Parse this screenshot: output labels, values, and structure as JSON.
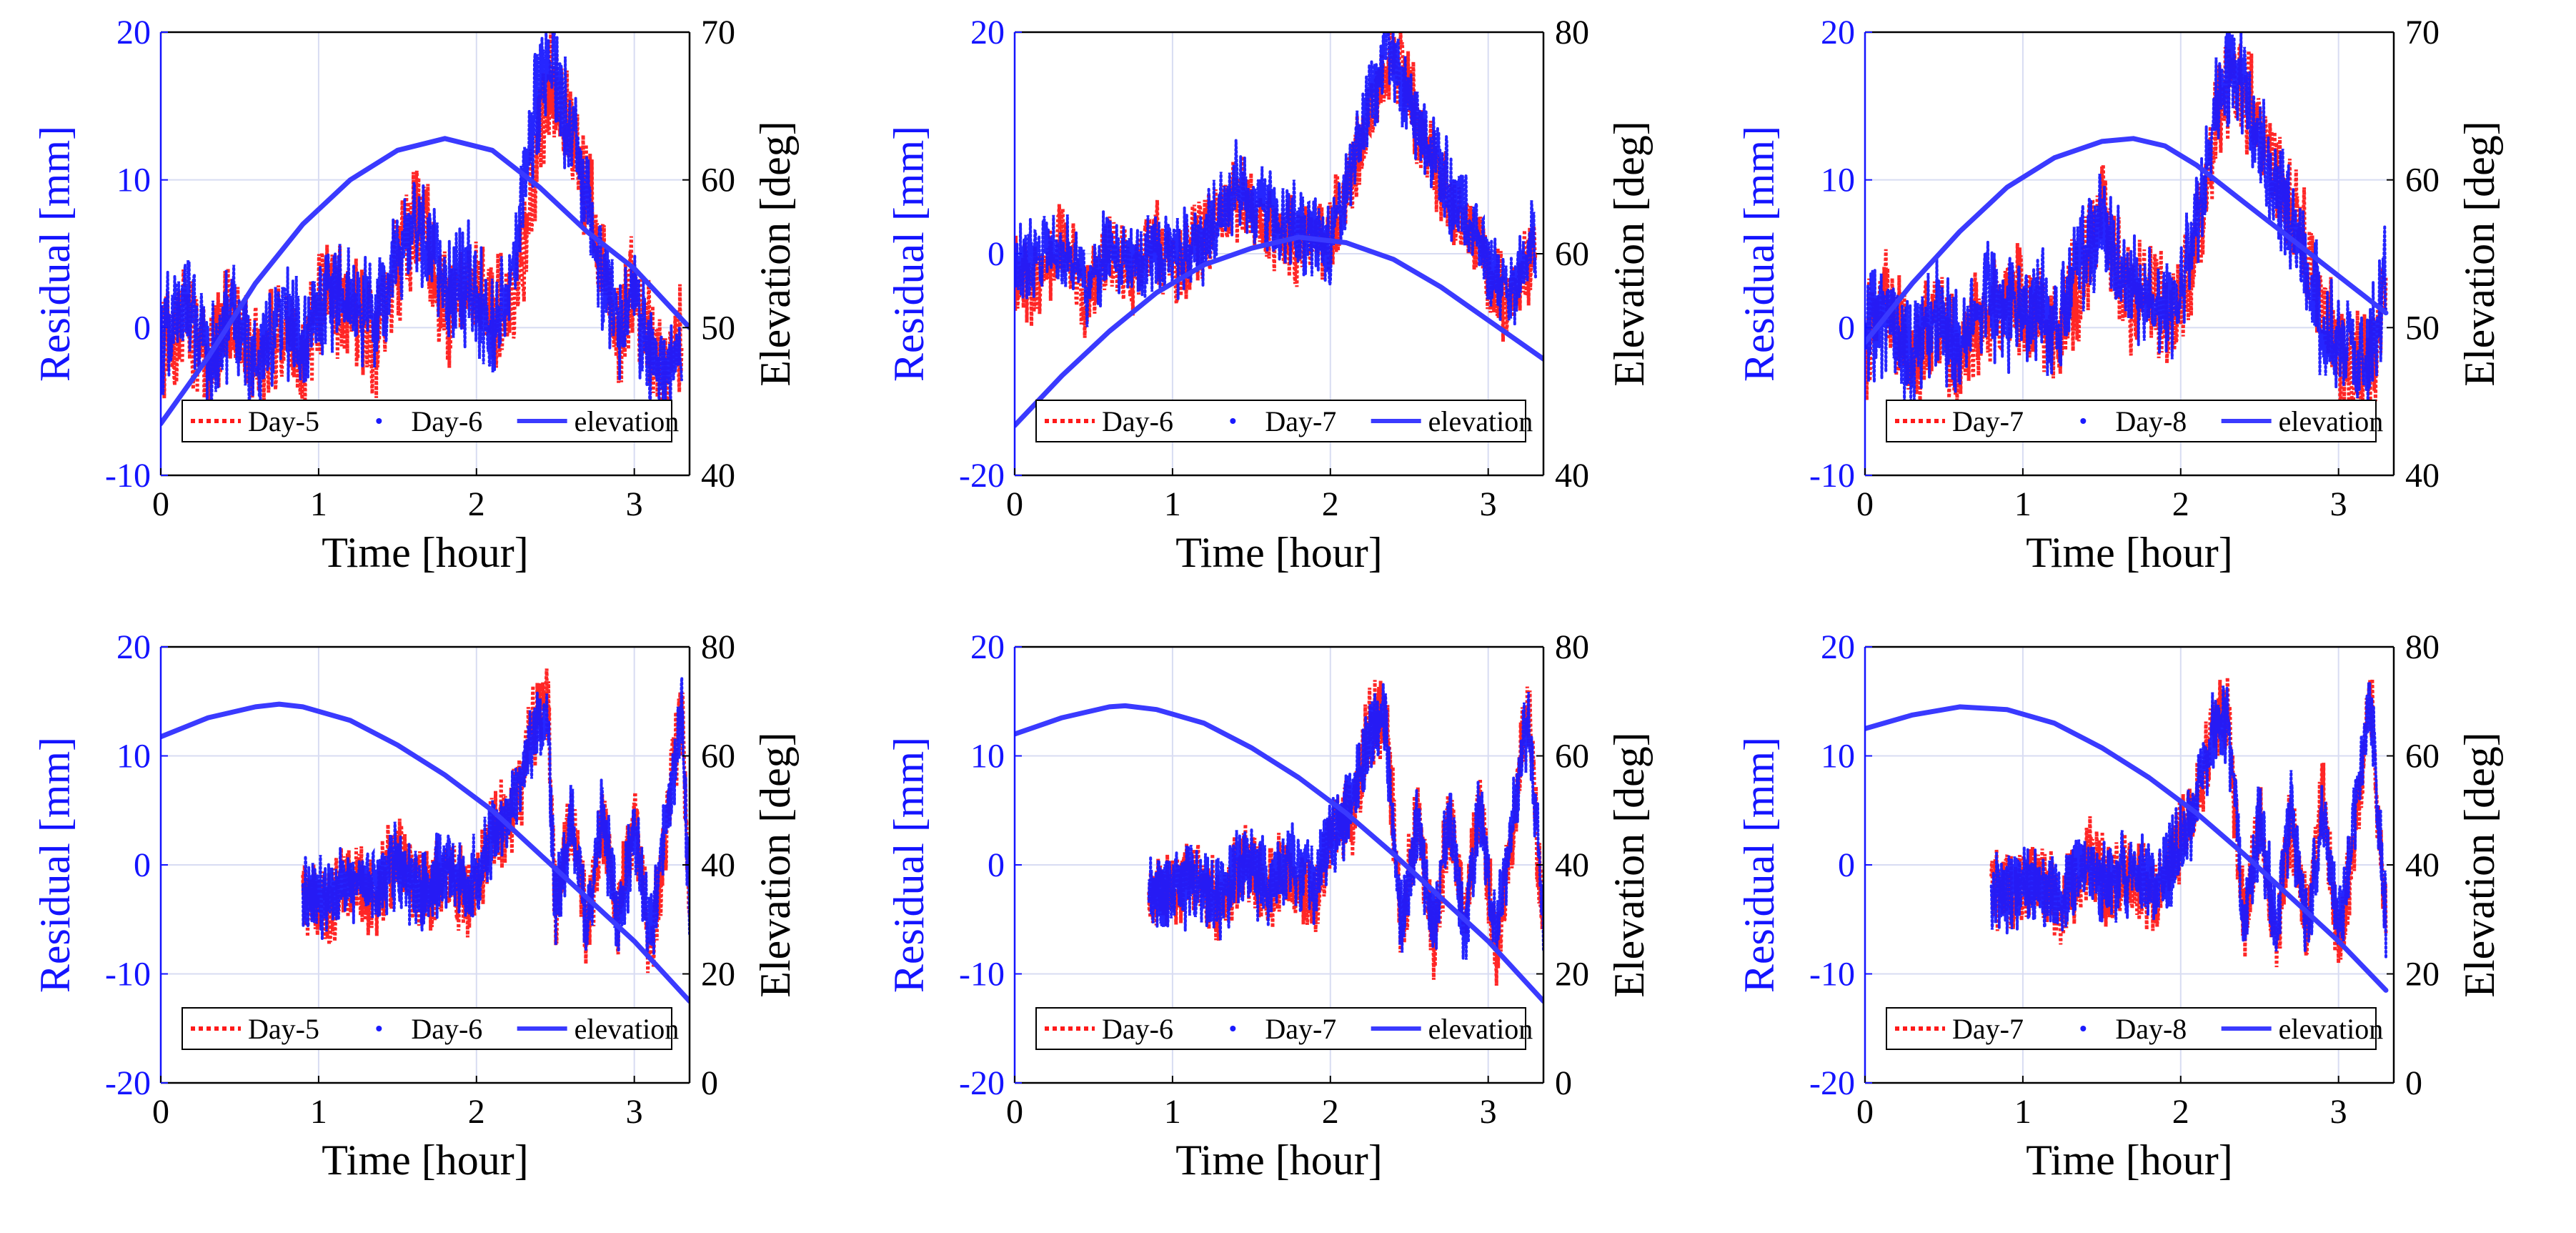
{
  "colors": {
    "residual_a": "#ff1a1a",
    "residual_b": "#1a1aff",
    "elevation": "#3a3aff",
    "left_axis": "#1414ff",
    "right_axis": "#000000",
    "grid": "#d8dcf2"
  },
  "chart_data": [
    {
      "type": "line",
      "xlabel": "Time [hour]",
      "ylabel": "Residual [mm]",
      "y2label": "Elevation [deg]",
      "xlim": [
        0,
        3.35
      ],
      "ylim": [
        -10,
        20
      ],
      "y2lim": [
        40,
        70
      ],
      "xticks": [
        "0",
        "1",
        "2",
        "3"
      ],
      "yticks": [
        "-10",
        "0",
        "10",
        "20"
      ],
      "y2ticks": [
        "40",
        "50",
        "60",
        "70"
      ],
      "grid": true,
      "legend_position": "bottom",
      "series": [
        {
          "name": "Day-5",
          "style": "dotted",
          "x": [
            0,
            0.15,
            0.3,
            0.45,
            0.6,
            0.75,
            0.9,
            1.05,
            1.2,
            1.35,
            1.5,
            1.65,
            1.8,
            1.95,
            2.1,
            2.25,
            2.35,
            2.45,
            2.5,
            2.8,
            2.9,
            3.0,
            3.1,
            3.2,
            3.3
          ],
          "y": [
            -2,
            1,
            -3,
            1,
            -2,
            0,
            -2,
            3,
            1,
            -1,
            4,
            8,
            1,
            3,
            1,
            2,
            9,
            15,
            17,
            5,
            -1,
            3,
            -1,
            -3,
            -1
          ]
        },
        {
          "name": "Day-6",
          "style": "dots",
          "x": [
            0,
            0.15,
            0.3,
            0.45,
            0.6,
            0.75,
            0.9,
            1.05,
            1.2,
            1.35,
            1.5,
            1.65,
            1.8,
            1.95,
            2.1,
            2.2,
            2.3,
            2.4,
            2.45,
            2.8,
            2.9,
            3.0,
            3.1,
            3.2,
            3.3
          ],
          "y": [
            -1,
            2,
            -2,
            1,
            -3,
            1,
            -1,
            2,
            2,
            0,
            5,
            7,
            2,
            3,
            0,
            3,
            10,
            16,
            19,
            4,
            0,
            2,
            -2,
            -3,
            0
          ]
        },
        {
          "name": "elevation",
          "style": "solid",
          "axis": "right",
          "x": [
            0,
            0.3,
            0.6,
            0.9,
            1.2,
            1.5,
            1.8,
            2.1,
            2.4,
            2.7,
            3.0,
            3.35
          ],
          "y": [
            43.5,
            48,
            53,
            57,
            60,
            62,
            62.8,
            62,
            59.5,
            56.5,
            54,
            50
          ]
        }
      ]
    },
    {
      "type": "line",
      "xlabel": "Time [hour]",
      "ylabel": "Residual [mm]",
      "y2label": "Elevation [deg]",
      "xlim": [
        0,
        3.35
      ],
      "ylim": [
        -20,
        20
      ],
      "y2lim": [
        40,
        80
      ],
      "xticks": [
        "0",
        "1",
        "2",
        "3"
      ],
      "yticks": [
        "-20",
        "0",
        "20"
      ],
      "y2ticks": [
        "40",
        "60",
        "80"
      ],
      "grid": true,
      "legend_position": "bottom",
      "series": [
        {
          "name": "Day-6",
          "style": "dotted",
          "x": [
            0,
            0.15,
            0.3,
            0.45,
            0.6,
            0.75,
            0.9,
            1.05,
            1.2,
            1.4,
            1.6,
            1.8,
            2.0,
            2.1,
            2.2,
            2.3,
            2.4,
            2.8,
            2.9,
            3.0,
            3.1,
            3.2,
            3.3
          ],
          "y": [
            -2,
            -3,
            2,
            -4,
            0,
            -2,
            1,
            -1,
            2,
            5,
            3,
            1,
            2,
            5,
            10,
            15,
            18,
            3,
            2,
            -2,
            -4,
            -3,
            1
          ]
        },
        {
          "name": "Day-7",
          "style": "dots",
          "x": [
            0,
            0.15,
            0.3,
            0.45,
            0.6,
            0.75,
            0.9,
            1.05,
            1.2,
            1.4,
            1.6,
            1.8,
            2.0,
            2.1,
            2.2,
            2.3,
            2.35,
            2.8,
            2.9,
            3.0,
            3.1,
            3.2,
            3.3
          ],
          "y": [
            -1,
            0,
            1,
            -3,
            1,
            -1,
            0,
            0,
            1,
            6,
            4,
            2,
            1,
            6,
            11,
            16,
            19,
            4,
            3,
            -1,
            -3,
            -2,
            2
          ]
        },
        {
          "name": "elevation",
          "style": "solid",
          "axis": "right",
          "x": [
            0,
            0.3,
            0.6,
            0.9,
            1.2,
            1.5,
            1.8,
            2.1,
            2.4,
            2.7,
            3.0,
            3.35
          ],
          "y": [
            44.5,
            49,
            53,
            56.5,
            59,
            60.5,
            61.5,
            61,
            59.5,
            57,
            54,
            50.5
          ]
        }
      ]
    },
    {
      "type": "line",
      "xlabel": "Time [hour]",
      "ylabel": "Residual [mm]",
      "y2label": "Elevation [deg]",
      "xlim": [
        0,
        3.35
      ],
      "ylim": [
        -10,
        20
      ],
      "y2lim": [
        40,
        70
      ],
      "xticks": [
        "0",
        "1",
        "2",
        "3"
      ],
      "yticks": [
        "-10",
        "0",
        "10",
        "20"
      ],
      "y2ticks": [
        "40",
        "50",
        "60",
        "70"
      ],
      "grid": true,
      "legend_position": "bottom",
      "series": [
        {
          "name": "Day-7",
          "style": "dotted",
          "x": [
            0,
            0.15,
            0.3,
            0.45,
            0.6,
            0.75,
            0.9,
            1.05,
            1.2,
            1.35,
            1.5,
            1.65,
            1.8,
            1.95,
            2.05,
            2.15,
            2.25,
            2.35,
            2.8,
            2.9,
            3.0,
            3.1,
            3.2,
            3.3
          ],
          "y": [
            -1,
            2,
            -3,
            0,
            -2,
            1,
            2,
            1,
            -1,
            3,
            8,
            2,
            3,
            0,
            4,
            9,
            15,
            17,
            5,
            1,
            -2,
            -3,
            -3,
            2
          ]
        },
        {
          "name": "Day-8",
          "style": "dots",
          "x": [
            0,
            0.15,
            0.3,
            0.45,
            0.6,
            0.75,
            0.9,
            1.05,
            1.2,
            1.35,
            1.5,
            1.65,
            1.8,
            1.95,
            2.05,
            2.15,
            2.25,
            2.3,
            2.8,
            2.9,
            3.0,
            3.1,
            3.2,
            3.3
          ],
          "y": [
            0,
            1,
            -2,
            1,
            -1,
            2,
            1,
            2,
            0,
            4,
            7,
            3,
            2,
            1,
            5,
            10,
            16,
            18,
            4,
            0,
            -1,
            -2,
            -2,
            3
          ]
        },
        {
          "name": "elevation",
          "style": "solid",
          "axis": "right",
          "x": [
            0,
            0.3,
            0.6,
            0.9,
            1.2,
            1.5,
            1.7,
            1.9,
            2.1,
            2.4,
            2.7,
            3.0,
            3.3
          ],
          "y": [
            49,
            53,
            56.5,
            59.5,
            61.5,
            62.6,
            62.8,
            62.3,
            61,
            58.5,
            56,
            53.5,
            51
          ]
        }
      ]
    },
    {
      "type": "line",
      "xlabel": "Time [hour]",
      "ylabel": "Residual [mm]",
      "y2label": "Elevation [deg]",
      "xlim": [
        0,
        3.35
      ],
      "ylim": [
        -20,
        20
      ],
      "y2lim": [
        0,
        80
      ],
      "xticks": [
        "0",
        "1",
        "2",
        "3"
      ],
      "yticks": [
        "-20",
        "-10",
        "0",
        "10",
        "20"
      ],
      "y2ticks": [
        "0",
        "20",
        "40",
        "60",
        "80"
      ],
      "grid": true,
      "legend_position": "bottom",
      "series": [
        {
          "name": "Day-5",
          "style": "dotted",
          "x": [
            0.9,
            1.05,
            1.2,
            1.35,
            1.5,
            1.65,
            1.8,
            1.95,
            2.1,
            2.25,
            2.35,
            2.45,
            2.5,
            2.6,
            2.7,
            2.8,
            2.9,
            3.0,
            3.1,
            3.2,
            3.3,
            3.35
          ],
          "y": [
            -2,
            -4,
            -1,
            -3,
            1,
            -2,
            -1,
            -3,
            3,
            5,
            13,
            15,
            -5,
            5,
            -6,
            4,
            -5,
            5,
            -8,
            3,
            15,
            -5
          ]
        },
        {
          "name": "Day-6",
          "style": "dots",
          "x": [
            0.9,
            1.05,
            1.2,
            1.35,
            1.5,
            1.65,
            1.8,
            1.95,
            2.1,
            2.25,
            2.35,
            2.45,
            2.5,
            2.6,
            2.7,
            2.8,
            2.9,
            3.0,
            3.1,
            3.2,
            3.3,
            3.35
          ],
          "y": [
            -3,
            -3,
            -2,
            -2,
            0,
            -3,
            0,
            -2,
            2,
            6,
            12,
            14,
            -4,
            4,
            -5,
            5,
            -6,
            4,
            -7,
            4,
            14,
            -4
          ]
        },
        {
          "name": "elevation",
          "style": "solid",
          "axis": "right",
          "x": [
            0,
            0.3,
            0.6,
            0.75,
            0.9,
            1.2,
            1.5,
            1.8,
            2.1,
            2.4,
            2.7,
            3.0,
            3.35
          ],
          "y": [
            63.5,
            67,
            69,
            69.5,
            69,
            66.5,
            62,
            56.5,
            50,
            42,
            34,
            26,
            15
          ]
        }
      ]
    },
    {
      "type": "line",
      "xlabel": "Time [hour]",
      "ylabel": "Residual [mm]",
      "y2label": "Elevation [deg]",
      "xlim": [
        0,
        3.35
      ],
      "ylim": [
        -20,
        20
      ],
      "y2lim": [
        0,
        80
      ],
      "xticks": [
        "0",
        "1",
        "2",
        "3"
      ],
      "yticks": [
        "-20",
        "-10",
        "0",
        "10",
        "20"
      ],
      "y2ticks": [
        "0",
        "20",
        "40",
        "60",
        "80"
      ],
      "grid": true,
      "legend_position": "bottom",
      "series": [
        {
          "name": "Day-6",
          "style": "dotted",
          "x": [
            0.85,
            1.0,
            1.15,
            1.3,
            1.45,
            1.6,
            1.75,
            1.9,
            2.0,
            2.15,
            2.25,
            2.35,
            2.45,
            2.55,
            2.65,
            2.75,
            2.85,
            2.95,
            3.05,
            3.15,
            3.25,
            3.35
          ],
          "y": [
            -2,
            -3,
            -1,
            -4,
            1,
            -2,
            -1,
            -3,
            3,
            5,
            13,
            14,
            -6,
            5,
            -7,
            4,
            -5,
            6,
            -8,
            3,
            15,
            -6
          ]
        },
        {
          "name": "Day-7",
          "style": "dots",
          "x": [
            0.85,
            1.0,
            1.15,
            1.3,
            1.45,
            1.6,
            1.75,
            1.9,
            2.0,
            2.15,
            2.25,
            2.35,
            2.45,
            2.55,
            2.65,
            2.75,
            2.85,
            2.95,
            3.05,
            3.15,
            3.25,
            3.35
          ],
          "y": [
            -3,
            -2,
            -2,
            -3,
            0,
            -2,
            0,
            -2,
            2,
            6,
            12,
            13,
            -5,
            4,
            -6,
            5,
            -6,
            5,
            -7,
            4,
            14,
            -5
          ]
        },
        {
          "name": "elevation",
          "style": "solid",
          "axis": "right",
          "x": [
            0,
            0.3,
            0.6,
            0.7,
            0.9,
            1.2,
            1.5,
            1.8,
            2.1,
            2.4,
            2.7,
            3.0,
            3.35
          ],
          "y": [
            64,
            67,
            69,
            69.2,
            68.5,
            66,
            61.5,
            56,
            49.5,
            42,
            34,
            26,
            15
          ]
        }
      ]
    },
    {
      "type": "line",
      "xlabel": "Time [hour]",
      "ylabel": "Residual [mm]",
      "y2label": "Elevation [deg]",
      "xlim": [
        0,
        3.35
      ],
      "ylim": [
        -20,
        20
      ],
      "y2lim": [
        0,
        80
      ],
      "xticks": [
        "0",
        "1",
        "2",
        "3"
      ],
      "yticks": [
        "-20",
        "-10",
        "0",
        "10",
        "20"
      ],
      "y2ticks": [
        "0",
        "20",
        "40",
        "60",
        "80"
      ],
      "grid": true,
      "legend_position": "bottom",
      "series": [
        {
          "name": "Day-7",
          "style": "dotted",
          "x": [
            0.8,
            0.95,
            1.1,
            1.25,
            1.4,
            1.55,
            1.7,
            1.85,
            2.0,
            2.1,
            2.2,
            2.3,
            2.4,
            2.5,
            2.6,
            2.7,
            2.8,
            2.9,
            3.0,
            3.1,
            3.2,
            3.3
          ],
          "y": [
            -2,
            -3,
            -1,
            -4,
            1,
            -2,
            -1,
            -3,
            3,
            5,
            13,
            14,
            -6,
            5,
            -7,
            4,
            -5,
            6,
            -8,
            3,
            16,
            -6
          ]
        },
        {
          "name": "Day-8",
          "style": "dots",
          "x": [
            0.8,
            0.95,
            1.1,
            1.25,
            1.4,
            1.55,
            1.7,
            1.85,
            2.0,
            2.1,
            2.2,
            2.3,
            2.4,
            2.5,
            2.6,
            2.7,
            2.8,
            2.9,
            3.0,
            3.1,
            3.2,
            3.3
          ],
          "y": [
            -3,
            -2,
            -2,
            -3,
            0,
            -2,
            0,
            -2,
            2,
            6,
            12,
            13,
            -5,
            4,
            -6,
            5,
            -6,
            5,
            -7,
            4,
            15,
            -5
          ]
        },
        {
          "name": "elevation",
          "style": "solid",
          "axis": "right",
          "x": [
            0,
            0.3,
            0.6,
            0.9,
            1.2,
            1.5,
            1.8,
            2.1,
            2.4,
            2.7,
            3.0,
            3.3
          ],
          "y": [
            65,
            67.5,
            69,
            68.5,
            66,
            61.5,
            56,
            49.5,
            42,
            34,
            26,
            17
          ]
        }
      ]
    }
  ]
}
